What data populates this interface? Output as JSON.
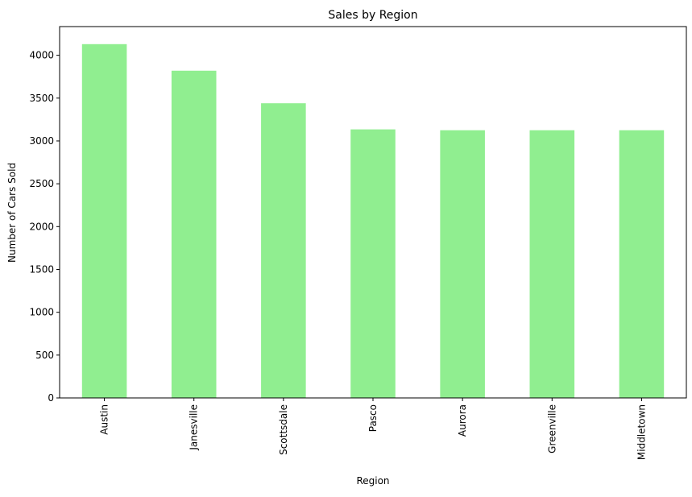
{
  "chart_data": {
    "type": "bar",
    "title": "Sales by Region",
    "xlabel": "Region",
    "ylabel": "Number of Cars Sold",
    "categories": [
      "Austin",
      "Janesville",
      "Scottsdale",
      "Pasco",
      "Aurora",
      "Greenville",
      "Middletown"
    ],
    "values": [
      4130,
      3820,
      3440,
      3135,
      3125,
      3125,
      3125
    ],
    "ylim": [
      0,
      4335
    ],
    "yticks": [
      0,
      500,
      1000,
      1500,
      2000,
      2500,
      3000,
      3500,
      4000
    ],
    "bar_color": "#90ee90",
    "grid": false,
    "legend": null
  }
}
